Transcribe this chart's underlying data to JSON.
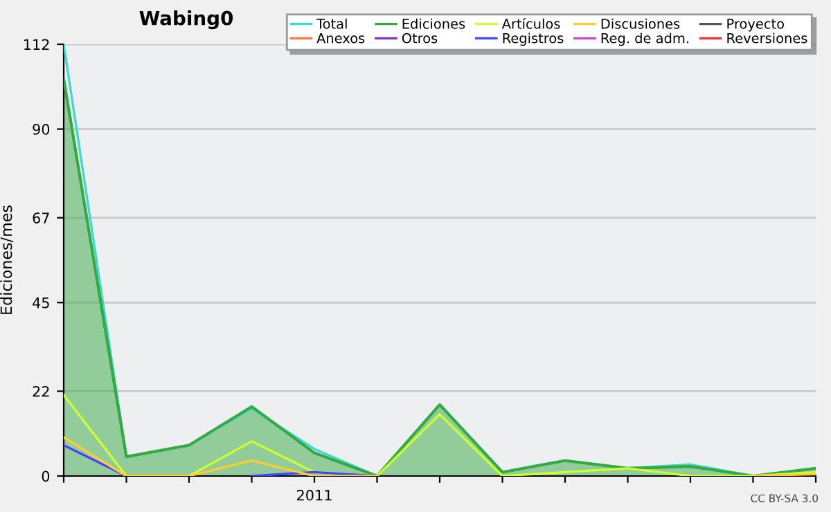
{
  "chart_data": {
    "type": "line",
    "title": "Wabing0",
    "ylabel": "Ediciones/mes",
    "categories": [
      null,
      null,
      null,
      null,
      "2011",
      null,
      null,
      null,
      null,
      null,
      null,
      null,
      null
    ],
    "ylim": [
      0,
      112
    ],
    "yticks": [
      0,
      22,
      45,
      67,
      90,
      112
    ],
    "grid": "y",
    "legend": "top right",
    "annotations": [
      "CC BY-SA 3.0"
    ],
    "series": [
      {
        "name": "Total",
        "color": "#40d8d0",
        "values": [
          112,
          5,
          8,
          17.5,
          7,
          0,
          18.5,
          1,
          4,
          2,
          3,
          0,
          2
        ]
      },
      {
        "name": "Anexos",
        "color": "#ff7744",
        "values": [
          null,
          null,
          null,
          null,
          null,
          null,
          null,
          null,
          null,
          null,
          null,
          null,
          null
        ]
      },
      {
        "name": "Ediciones",
        "color": "#33aa44",
        "type": "area",
        "values": [
          103,
          5,
          8,
          18,
          6,
          0,
          18.5,
          1,
          4,
          2,
          2.5,
          0,
          2
        ]
      },
      {
        "name": "Otros",
        "color": "#7733cc",
        "values": [
          null,
          null,
          null,
          null,
          null,
          null,
          null,
          null,
          null,
          null,
          null,
          null,
          null
        ]
      },
      {
        "name": "Artículos",
        "color": "#ccff33",
        "values": [
          21,
          0,
          0,
          9,
          1,
          0,
          16,
          0,
          1,
          2,
          0,
          0,
          1
        ]
      },
      {
        "name": "Registros",
        "color": "#4444ff",
        "values": [
          8,
          0,
          null,
          0,
          1,
          0,
          null,
          null,
          null,
          null,
          null,
          null,
          null
        ]
      },
      {
        "name": "Discusiones",
        "color": "#ffcc33",
        "values": [
          10,
          0,
          0,
          4,
          0,
          0,
          null,
          null,
          null,
          null,
          null,
          0,
          0.5
        ]
      },
      {
        "name": "Reg. de adm.",
        "color": "#cc44cc",
        "values": [
          null,
          null,
          null,
          null,
          null,
          null,
          null,
          null,
          null,
          null,
          null,
          null,
          null
        ]
      },
      {
        "name": "Proyecto",
        "color": "#555555",
        "values": [
          null,
          null,
          null,
          null,
          null,
          null,
          null,
          null,
          null,
          null,
          null,
          null,
          null
        ]
      },
      {
        "name": "Reversiones",
        "color": "#ee3333",
        "values": [
          null,
          null,
          null,
          null,
          null,
          null,
          null,
          null,
          null,
          null,
          null,
          null,
          null
        ]
      }
    ]
  }
}
